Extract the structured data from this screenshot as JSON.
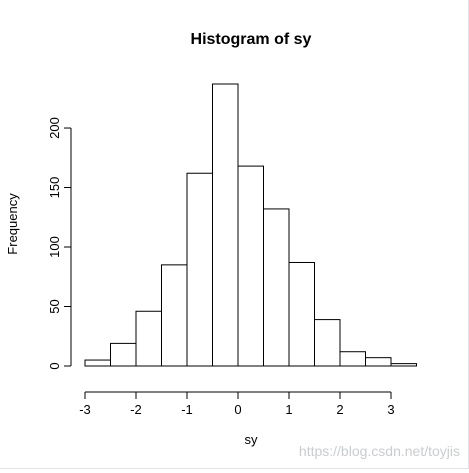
{
  "chart_data": {
    "type": "bar",
    "title": "Histogram of sy",
    "xlabel": "sy",
    "ylabel": "Frequency",
    "bins": [
      {
        "from": -3.0,
        "to": -2.5,
        "count": 5
      },
      {
        "from": -2.5,
        "to": -2.0,
        "count": 19
      },
      {
        "from": -2.0,
        "to": -1.5,
        "count": 46
      },
      {
        "from": -1.5,
        "to": -1.0,
        "count": 85
      },
      {
        "from": -1.0,
        "to": -0.5,
        "count": 162
      },
      {
        "from": -0.5,
        "to": 0.0,
        "count": 237
      },
      {
        "from": 0.0,
        "to": 0.5,
        "count": 168
      },
      {
        "from": 0.5,
        "to": 1.0,
        "count": 132
      },
      {
        "from": 1.0,
        "to": 1.5,
        "count": 87
      },
      {
        "from": 1.5,
        "to": 2.0,
        "count": 39
      },
      {
        "from": 2.0,
        "to": 2.5,
        "count": 12
      },
      {
        "from": 2.5,
        "to": 3.0,
        "count": 7
      },
      {
        "from": 3.0,
        "to": 3.5,
        "count": 2
      }
    ],
    "xlim": [
      -3,
      3.5
    ],
    "ylim": [
      0,
      237
    ],
    "x_ticks": [
      -3,
      -2,
      -1,
      0,
      1,
      2,
      3
    ],
    "x_tick_labels": [
      "-3",
      "-2",
      "-1",
      "0",
      "1",
      "2",
      "3"
    ],
    "y_ticks": [
      0,
      50,
      100,
      150,
      200
    ],
    "y_tick_labels": [
      "0",
      "50",
      "100",
      "150",
      "200"
    ],
    "grid": false,
    "bar_fill": "#ffffff",
    "bar_stroke": "#000000"
  },
  "watermark": "https://blog.csdn.net/toyjis"
}
